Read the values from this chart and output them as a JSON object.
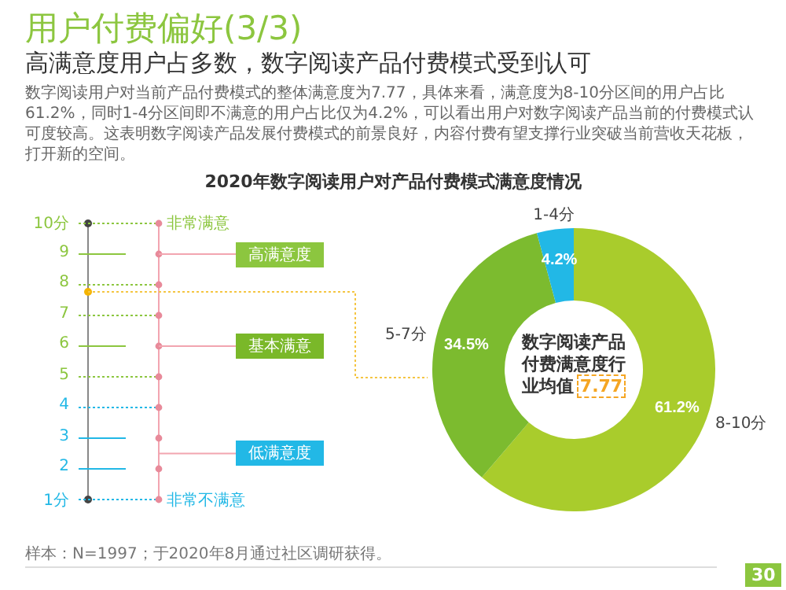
{
  "chart_data": {
    "type": "donut",
    "title": "2020年数字阅读用户对产品付费模式满意度情况",
    "categories": [
      "8-10分",
      "5-7分",
      "1-4分"
    ],
    "values": [
      61.2,
      34.5,
      4.2
    ],
    "colors": [
      "#a9cc2c",
      "#7cbb2f",
      "#22b8e6"
    ],
    "value_labels": [
      "61.2%",
      "34.5%",
      "4.2%"
    ],
    "annotations": [
      "用户付费偏好(3/3)",
      "高满意度用户占多数，数字阅读产品付费模式受到认可",
      "数字阅读用户对当前产品付费模式的整体满意度为7.77，具体来看，满意度为8-10分区间的用户占比61.2%，同时1-4分区间即不满意的用户占比仅为4.2%，可以看出用户对数字阅读产品当前的付费模式认可度较高。这表明数字阅读产品发展付费模式的前景良好，内容付费有望支撑行业突破当前营收天花板，打开新的空间。",
      "10分",
      "9",
      "8",
      "7",
      "6",
      "5",
      "4",
      "3",
      "2",
      "1分",
      "非常满意",
      "高满意度",
      "基本满意",
      "低满意度",
      "非常不满意",
      "数字阅读产品付费满意度行业均值",
      "7.77",
      "样本：N=1997；于2020年8月通过社区调研获得。",
      "30"
    ]
  }
}
